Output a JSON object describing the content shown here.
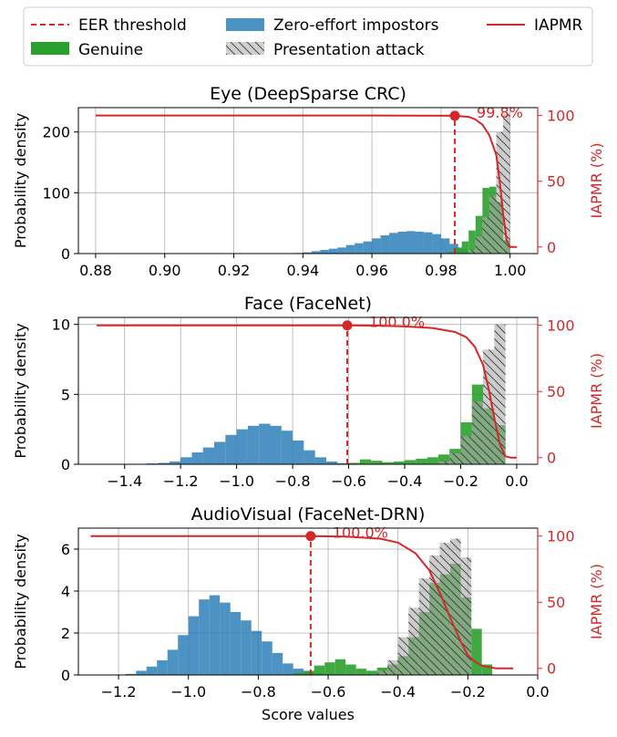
{
  "legend": {
    "items": [
      {
        "label": "EER threshold",
        "kind": "dashed-line",
        "color": "#d62728"
      },
      {
        "label": "Genuine",
        "kind": "patch",
        "color": "#2ca02c"
      },
      {
        "label": "Zero-effort impostors",
        "kind": "patch",
        "color": "#1f77b4"
      },
      {
        "label": "Presentation attack",
        "kind": "hatch-patch",
        "color": "#bbbbbb"
      },
      {
        "label": "IAPMR",
        "kind": "line",
        "color": "#d62728"
      }
    ]
  },
  "colors": {
    "genuine": "#2ca02c",
    "zei": "#1f77b4",
    "pa": "#aaaaaa",
    "iapmr": "#d62728",
    "grid": "#b0b0b0"
  },
  "chart_data": [
    {
      "type": "bar",
      "title": "Eye (DeepSparse CRC)",
      "xlabel": "",
      "ylabel": "Probability density",
      "y2label": "IAPMR (%)",
      "xlim": [
        0.875,
        1.008
      ],
      "ylim": [
        0,
        240
      ],
      "y2lim": [
        -5,
        106
      ],
      "xticks": [
        0.88,
        0.9,
        0.92,
        0.94,
        0.96,
        0.98,
        1.0
      ],
      "xtick_labels": [
        "0.88",
        "0.90",
        "0.92",
        "0.94",
        "0.96",
        "0.98",
        "1.00"
      ],
      "yticks": [
        0,
        100,
        200
      ],
      "y2ticks": [
        0,
        50,
        100
      ],
      "grid": true,
      "series": [
        {
          "name": "Zero-effort impostors",
          "role": "zei",
          "edges": [
            0.9375,
            0.94,
            0.9425,
            0.945,
            0.9475,
            0.95,
            0.9525,
            0.955,
            0.9575,
            0.96,
            0.9625,
            0.965,
            0.9675,
            0.97,
            0.9725,
            0.975,
            0.9775,
            0.98,
            0.9825,
            0.985,
            0.9875,
            0.99,
            0.9925
          ],
          "values": [
            1,
            2,
            4,
            6,
            8,
            10,
            14,
            17,
            20,
            25,
            30,
            34,
            36,
            37,
            36,
            35,
            32,
            25,
            16,
            8,
            3,
            1
          ]
        },
        {
          "name": "Genuine",
          "role": "genuine",
          "edges": [
            0.982,
            0.984,
            0.986,
            0.988,
            0.99,
            0.992,
            0.994,
            0.996,
            0.998,
            1.0
          ],
          "values": [
            3,
            10,
            20,
            38,
            62,
            108,
            110,
            85,
            22
          ]
        },
        {
          "name": "Presentation attack",
          "role": "pa",
          "edges": [
            0.988,
            0.99,
            0.992,
            0.994,
            0.996,
            0.998,
            1.0
          ],
          "values": [
            6,
            28,
            60,
            95,
            200,
            230
          ]
        }
      ],
      "eer_threshold": 0.984,
      "iapmr_curve": {
        "x": [
          0.88,
          0.96,
          0.984,
          0.988,
          0.99,
          0.992,
          0.994,
          0.996,
          0.997,
          0.998,
          0.999,
          1.0,
          1.002
        ],
        "y": [
          100,
          100,
          99.8,
          99,
          97,
          93,
          85,
          70,
          50,
          25,
          5,
          0,
          0
        ]
      },
      "iapmr_marker": {
        "x": 0.984,
        "y": 99.8
      },
      "iapmr_label": "99.8%"
    },
    {
      "type": "bar",
      "title": "Face (FaceNet)",
      "xlabel": "",
      "ylabel": "Probability density",
      "y2label": "IAPMR (%)",
      "xlim": [
        -1.565,
        0.075
      ],
      "ylim": [
        0,
        10.5
      ],
      "y2lim": [
        -5,
        106
      ],
      "xticks": [
        -1.4,
        -1.2,
        -1.0,
        -0.8,
        -0.6,
        -0.4,
        -0.2,
        0.0
      ],
      "xtick_labels": [
        "−1.4",
        "−1.2",
        "−1.0",
        "−0.8",
        "−0.6",
        "−0.4",
        "−0.2",
        "0.0"
      ],
      "yticks": [
        0,
        5,
        10
      ],
      "y2ticks": [
        0,
        50,
        100
      ],
      "grid": true,
      "series": [
        {
          "name": "Zero-effort impostors",
          "role": "zei",
          "edges": [
            -1.4,
            -1.36,
            -1.32,
            -1.28,
            -1.24,
            -1.2,
            -1.16,
            -1.12,
            -1.08,
            -1.04,
            -1.0,
            -0.96,
            -0.92,
            -0.88,
            -0.84,
            -0.8,
            -0.76,
            -0.72,
            -0.68,
            -0.64,
            -0.6,
            -0.56
          ],
          "values": [
            0.02,
            0.03,
            0.06,
            0.1,
            0.2,
            0.5,
            0.85,
            1.2,
            1.6,
            2.1,
            2.5,
            2.75,
            2.9,
            2.75,
            2.4,
            1.7,
            1.0,
            0.5,
            0.2,
            0.08,
            0.02
          ]
        },
        {
          "name": "Genuine",
          "role": "genuine",
          "edges": [
            -0.64,
            -0.6,
            -0.56,
            -0.52,
            -0.48,
            -0.44,
            -0.4,
            -0.36,
            -0.32,
            -0.28,
            -0.24,
            -0.2,
            -0.16,
            -0.12,
            -0.08,
            -0.04
          ],
          "values": [
            0.05,
            0.1,
            0.35,
            0.25,
            0.15,
            0.2,
            0.3,
            0.4,
            0.5,
            0.7,
            1.1,
            3.0,
            5.7,
            4.0,
            2.8
          ]
        },
        {
          "name": "Presentation attack",
          "role": "pa",
          "edges": [
            -0.28,
            -0.24,
            -0.2,
            -0.16,
            -0.12,
            -0.08,
            -0.04
          ],
          "values": [
            0.2,
            0.8,
            2.0,
            4.5,
            8.2,
            10.0
          ]
        }
      ],
      "eer_threshold": -0.605,
      "iapmr_curve": {
        "x": [
          -1.5,
          -0.7,
          -0.605,
          -0.5,
          -0.4,
          -0.3,
          -0.22,
          -0.18,
          -0.15,
          -0.12,
          -0.1,
          -0.08,
          -0.06,
          -0.04,
          -0.02,
          0.0
        ],
        "y": [
          100,
          100,
          100,
          99.8,
          99.2,
          98,
          95,
          91,
          84,
          70,
          52,
          30,
          10,
          1,
          0,
          0
        ]
      },
      "iapmr_marker": {
        "x": -0.605,
        "y": 100
      },
      "iapmr_label": "100.0%"
    },
    {
      "type": "bar",
      "title": "AudioVisual (FaceNet-DRN)",
      "xlabel": "Score values",
      "ylabel": "Probability density",
      "y2label": "IAPMR (%)",
      "xlim": [
        -1.315,
        0.0
      ],
      "ylim": [
        0,
        7.0
      ],
      "y2lim": [
        -5,
        106
      ],
      "xticks": [
        -1.2,
        -1.0,
        -0.8,
        -0.6,
        -0.4,
        -0.2,
        0.0
      ],
      "xtick_labels": [
        "−1.2",
        "−1.0",
        "−0.8",
        "−0.6",
        "−0.4",
        "−0.2",
        "0.0"
      ],
      "yticks": [
        0,
        2,
        4,
        6
      ],
      "y2ticks": [
        0,
        50,
        100
      ],
      "grid": true,
      "series": [
        {
          "name": "Zero-effort impostors",
          "role": "zei",
          "edges": [
            -1.18,
            -1.15,
            -1.12,
            -1.09,
            -1.06,
            -1.03,
            -1.0,
            -0.97,
            -0.94,
            -0.91,
            -0.88,
            -0.85,
            -0.82,
            -0.79,
            -0.76,
            -0.73,
            -0.7,
            -0.67,
            -0.64,
            -0.61,
            -0.58
          ],
          "values": [
            0.05,
            0.2,
            0.4,
            0.7,
            1.2,
            1.9,
            2.8,
            3.6,
            3.8,
            3.45,
            3.0,
            2.6,
            2.1,
            1.6,
            1.05,
            0.55,
            0.3,
            0.15,
            0.08,
            0.03
          ]
        },
        {
          "name": "Genuine",
          "role": "genuine",
          "edges": [
            -0.7,
            -0.67,
            -0.64,
            -0.61,
            -0.58,
            -0.55,
            -0.52,
            -0.49,
            -0.46,
            -0.43,
            -0.4,
            -0.37,
            -0.34,
            -0.31,
            -0.28,
            -0.25,
            -0.22,
            -0.19,
            -0.16,
            -0.13
          ],
          "values": [
            0.1,
            0.2,
            0.45,
            0.6,
            0.75,
            0.5,
            0.3,
            0.2,
            0.35,
            0.5,
            0.9,
            1.8,
            3.0,
            4.4,
            4.8,
            5.3,
            3.7,
            2.2,
            0.5
          ]
        },
        {
          "name": "Presentation attack",
          "role": "pa",
          "edges": [
            -0.46,
            -0.43,
            -0.4,
            -0.37,
            -0.34,
            -0.31,
            -0.28,
            -0.25,
            -0.22,
            -0.19
          ],
          "values": [
            0.2,
            0.7,
            1.8,
            3.2,
            4.6,
            5.7,
            6.3,
            6.5,
            5.6
          ]
        }
      ],
      "eer_threshold": -0.65,
      "iapmr_curve": {
        "x": [
          -1.28,
          -0.75,
          -0.65,
          -0.55,
          -0.45,
          -0.4,
          -0.35,
          -0.31,
          -0.28,
          -0.25,
          -0.22,
          -0.2,
          -0.18,
          -0.16,
          -0.12,
          -0.07
        ],
        "y": [
          100,
          100,
          100,
          99.6,
          98,
          95,
          87,
          74,
          57,
          38,
          20,
          10,
          5,
          2,
          0,
          0
        ]
      },
      "iapmr_marker": {
        "x": -0.65,
        "y": 100
      },
      "iapmr_label": "100.0%"
    }
  ]
}
